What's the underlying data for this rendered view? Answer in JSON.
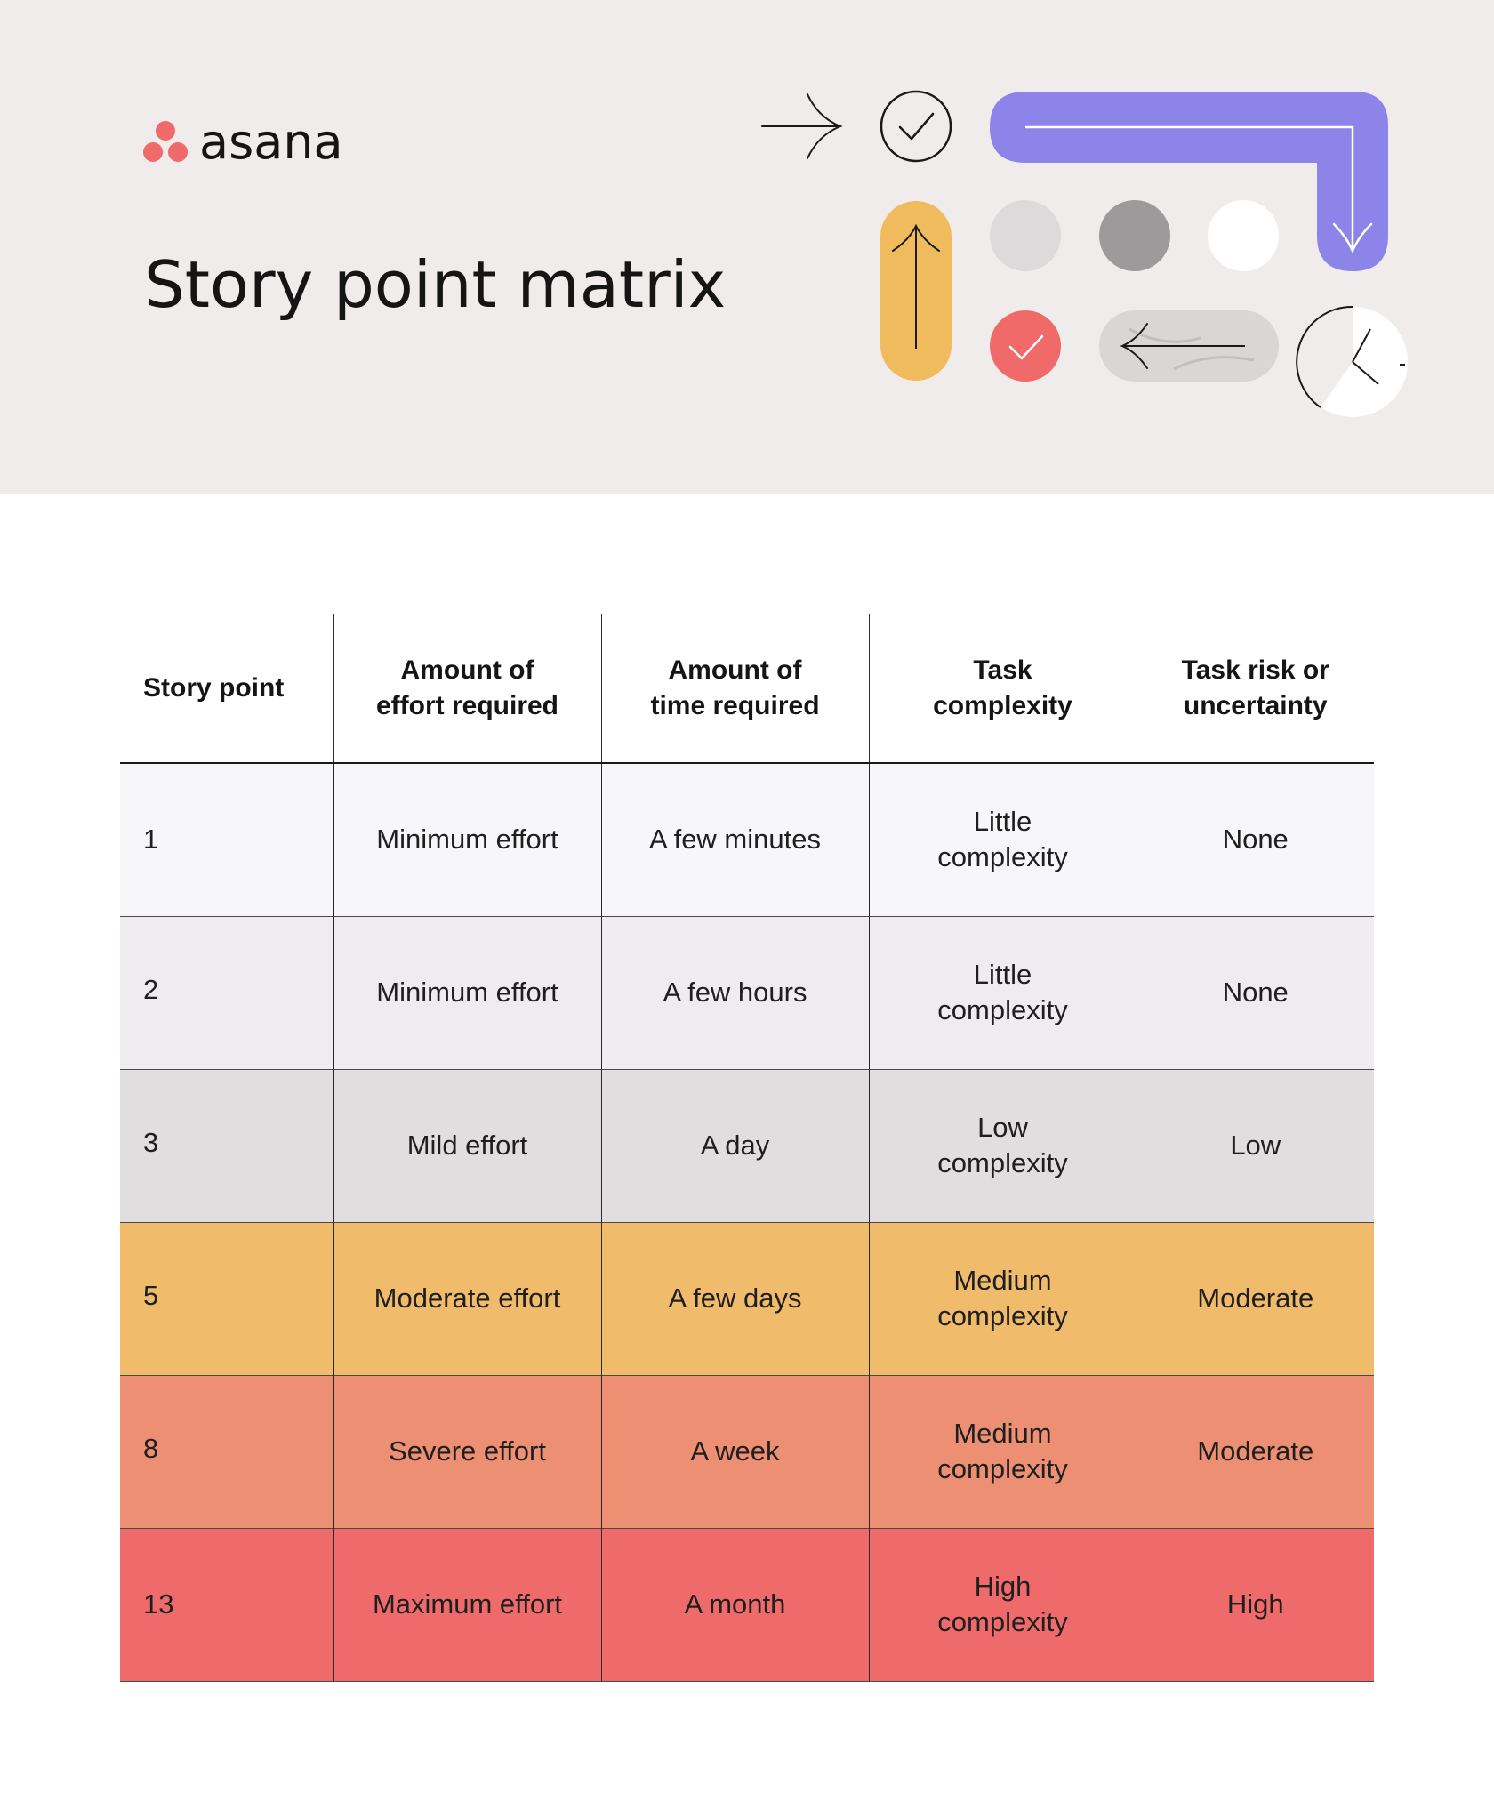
{
  "brand": {
    "logo_text": "asana",
    "logo_color": "#f06a6a"
  },
  "page": {
    "title": "Story point matrix"
  },
  "table": {
    "headers": [
      [
        "Story point"
      ],
      [
        "Amount of",
        "effort required"
      ],
      [
        "Amount of",
        "time required"
      ],
      [
        "Task",
        "complexity"
      ],
      [
        "Task risk or",
        "uncertainty"
      ]
    ],
    "rows": [
      {
        "point": "1",
        "effort": "Minimum effort",
        "time": "A few minutes",
        "complexity": [
          "Little",
          "complexity"
        ],
        "risk": "None",
        "color": "#f7f6f8"
      },
      {
        "point": "2",
        "effort": "Minimum effort",
        "time": "A few hours",
        "complexity": [
          "Little",
          "complexity"
        ],
        "risk": "None",
        "color": "#eeecee"
      },
      {
        "point": "3",
        "effort": "Mild effort",
        "time": "A day",
        "complexity": [
          "Low",
          "complexity"
        ],
        "risk": "Low",
        "color": "#e0dedf"
      },
      {
        "point": "5",
        "effort": "Moderate effort",
        "time": "A few days",
        "complexity": [
          "Medium",
          "complexity"
        ],
        "risk": "Moderate",
        "color": "#f0bc6c"
      },
      {
        "point": "8",
        "effort": "Severe effort",
        "time": "A week",
        "complexity": [
          "Medium",
          "complexity"
        ],
        "risk": "Moderate",
        "color": "#ec8f73"
      },
      {
        "point": "13",
        "effort": "Maximum effort",
        "time": "A month",
        "complexity": [
          "High",
          "complexity"
        ],
        "risk": "High",
        "color": "#ef6b6b"
      }
    ]
  },
  "illustration": {
    "icons": [
      "arrow-right-icon",
      "check-circle-icon",
      "purple-bent-arrow-icon",
      "yellow-up-arrow-icon",
      "light-gray-dot-icon",
      "gray-dot-icon",
      "white-dot-icon",
      "red-check-icon",
      "marble-left-arrow-icon",
      "clock-icon"
    ],
    "colors": {
      "purple": "#8c84e8",
      "yellow": "#efbb5c",
      "red": "#f06a6a",
      "gray": "#9c9a9b",
      "light_gray": "#dcdadb"
    }
  }
}
